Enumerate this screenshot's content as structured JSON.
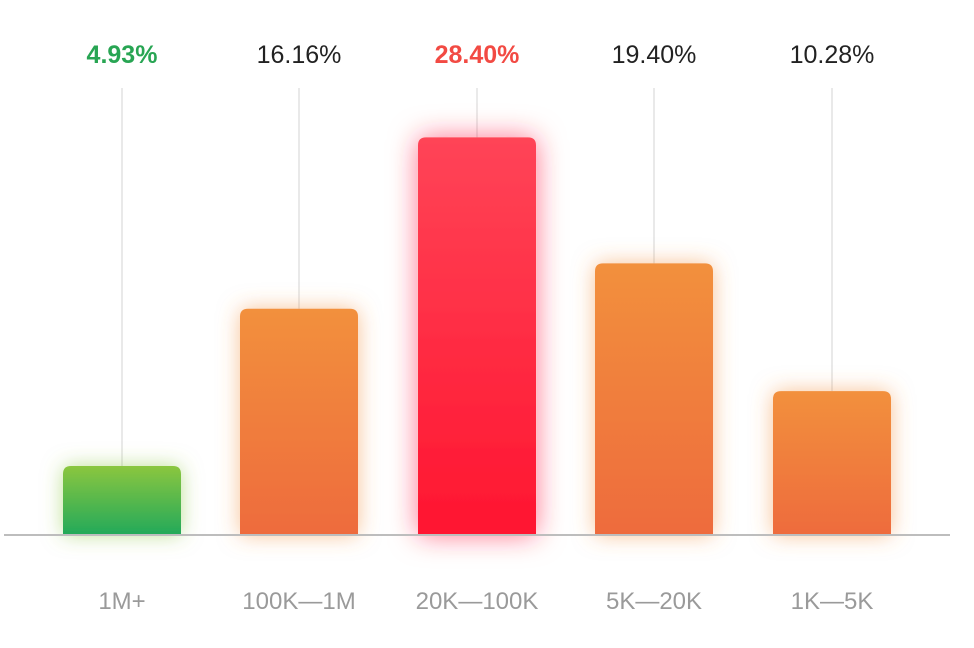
{
  "chart_data": {
    "type": "bar",
    "categories": [
      "1M+",
      "100K—1M",
      "20K—100K",
      "5K—20K",
      "1K—5K"
    ],
    "values": [
      4.93,
      16.16,
      28.4,
      19.4,
      10.28
    ],
    "value_labels": [
      "4.93%",
      "16.16%",
      "28.40%",
      "19.40%",
      "10.28%"
    ],
    "title": "",
    "xlabel": "",
    "ylabel": "",
    "ylim": [
      0,
      32
    ],
    "grid": false,
    "legend": "none",
    "colors": {
      "min_bar_top": "#8BC63F",
      "min_bar_bottom": "#22A95A",
      "max_bar_top": "#FF4457",
      "max_bar_bottom": "#FF1530",
      "bar_top": "#F2903E",
      "bar_bottom": "#EE6B3C",
      "min_label": "#28A553",
      "max_label": "#F24A43",
      "label": "#222222",
      "guide_line": "#e2e2e2",
      "baseline": "#bdbdbd"
    },
    "highlight": {
      "min_index": 0,
      "max_index": 2
    }
  }
}
